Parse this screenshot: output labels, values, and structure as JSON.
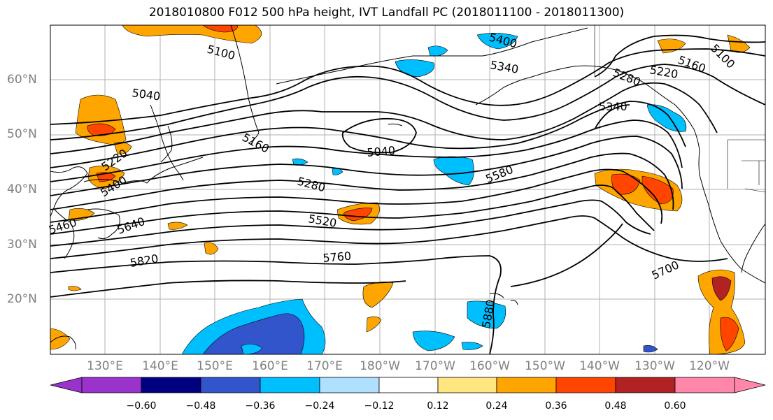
{
  "title": "2018010800 F012 500 hPa height, IVT Landfall PC (2018011100 - 2018011300)",
  "lat_labels": [
    "60°N",
    "50°N",
    "40°N",
    "30°N",
    "20°N"
  ],
  "lon_labels": [
    "130°E",
    "140°E",
    "150°E",
    "160°E",
    "170°E",
    "180°W",
    "170°W",
    "160°W",
    "150°W",
    "140°W",
    "130°W",
    "120°W"
  ],
  "contour_labels": [
    "5100",
    "5040",
    "5220",
    "5400",
    "5460",
    "5640",
    "5820",
    "5160",
    "5280",
    "5040",
    "5520",
    "5760",
    "5400",
    "5340",
    "5580",
    "5880",
    "5280",
    "5220",
    "5160",
    "5100",
    "5340",
    "5700"
  ],
  "colorbar": {
    "ticks": [
      "−0.60",
      "−0.48",
      "−0.36",
      "−0.24",
      "−0.12",
      "0.12",
      "0.24",
      "0.36",
      "0.48",
      "0.60"
    ],
    "colors": [
      "#9933cc",
      "#000080",
      "#3355cc",
      "#00bfff",
      "#b0e0ff",
      "#ffffff",
      "#ffe680",
      "#ffa500",
      "#ff4500",
      "#b22222",
      "#ff88aa"
    ]
  }
}
